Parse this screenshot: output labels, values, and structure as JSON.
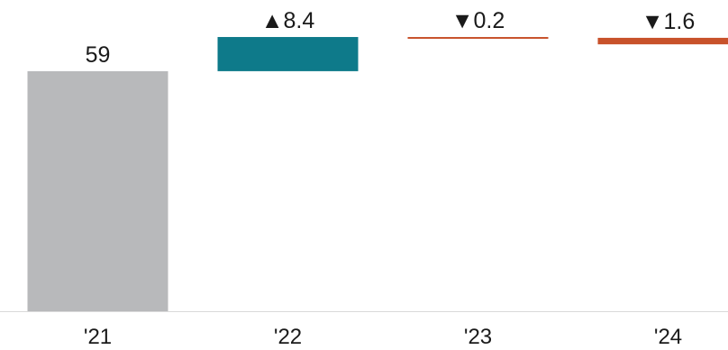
{
  "chart_data": {
    "type": "waterfall",
    "categories": [
      "'21",
      "'22",
      "'23",
      "'24"
    ],
    "values": [
      59,
      8.4,
      -0.2,
      -1.6
    ],
    "data_labels": [
      "59",
      "▲8.4",
      "▼0.2",
      "▼1.6"
    ],
    "ylim": [
      0,
      80
    ],
    "grid": false,
    "legend": "none"
  },
  "colors": {
    "base": "#b8b9bb",
    "increase": "#0e7a8a",
    "decrease": "#c8522b",
    "axis": "#d9d9d9",
    "text": "#1a1a1a"
  }
}
